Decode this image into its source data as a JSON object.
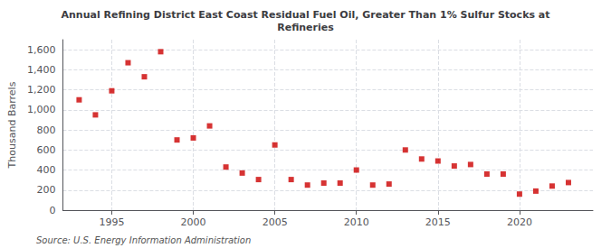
{
  "chart_data": {
    "type": "scatter",
    "title": "Annual Refining District East Coast Residual Fuel Oil, Greater Than 1% Sulfur Stocks at\nRefineries",
    "ylabel": "Thousand Barrels",
    "annotations": [
      "Source: U.S. Energy Information Administration"
    ],
    "x": [
      1993,
      1994,
      1995,
      1996,
      1997,
      1998,
      1999,
      2000,
      2001,
      2002,
      2003,
      2004,
      2005,
      2006,
      2007,
      2008,
      2009,
      2010,
      2011,
      2012,
      2013,
      2014,
      2015,
      2016,
      2017,
      2018,
      2019,
      2020,
      2021,
      2022,
      2023
    ],
    "values": [
      1100,
      950,
      1190,
      1470,
      1330,
      1580,
      700,
      720,
      840,
      430,
      370,
      305,
      650,
      305,
      250,
      270,
      270,
      400,
      250,
      260,
      600,
      510,
      490,
      440,
      455,
      360,
      360,
      160,
      190,
      240,
      275
    ],
    "color": "#cc0000",
    "marker": "square",
    "xlim": [
      1992,
      2024.5
    ],
    "xticks": [
      1995,
      2000,
      2005,
      2010,
      2015,
      2020
    ],
    "ylim": [
      0,
      1700
    ],
    "yticks": [
      0,
      200,
      400,
      600,
      800,
      {
        "value": 1000,
        "label": "1,000"
      },
      {
        "value": 1200,
        "label": "1,200"
      },
      {
        "value": 1400,
        "label": "1,400"
      },
      {
        "value": 1600,
        "label": "1,600"
      }
    ],
    "grid": true
  }
}
